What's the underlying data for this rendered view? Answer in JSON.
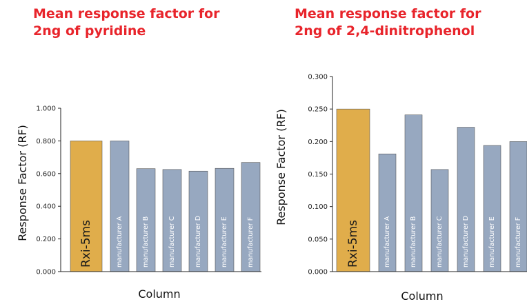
{
  "colors": {
    "title": "#e8242b",
    "highlight": "#e0ad4b",
    "bar": "#97a8c0",
    "axis": "#222222",
    "bar_text_highlight": "#1a1a1a",
    "bar_text": "#ffffff"
  },
  "chart_data": [
    {
      "type": "bar",
      "title_lines": [
        "Mean response factor for",
        "2ng of pyridine"
      ],
      "xlabel": "Column",
      "ylabel": "Response Factor (RF)",
      "ylim": [
        0,
        1.0
      ],
      "yticks": [
        "0.000",
        "0.200",
        "0.400",
        "0.600",
        "0.800",
        "1.000"
      ],
      "categories": [
        "Rxi-5ms",
        "manufacturer A",
        "manufacturer B",
        "manufacturer C",
        "manufacturer D",
        "manufacturer E",
        "manufacturer F"
      ],
      "values": [
        0.8,
        0.8,
        0.63,
        0.625,
        0.615,
        0.632,
        0.668
      ],
      "highlight_index": 0,
      "grid": false
    },
    {
      "type": "bar",
      "title_lines": [
        "Mean response factor for",
        "2ng of 2,4-dinitrophenol"
      ],
      "xlabel": "Column",
      "ylabel": "Response Factor (RF)",
      "ylim": [
        0,
        0.3
      ],
      "yticks": [
        "0.000",
        "0.050",
        "0.100",
        "0.150",
        "0.200",
        "0.250",
        "0.300"
      ],
      "categories": [
        "Rxi-5ms",
        "manufacturer A",
        "manufacturer B",
        "manufacturer C",
        "manufacturer D",
        "manufacturer E",
        "manufacturer F"
      ],
      "values": [
        0.25,
        0.181,
        0.241,
        0.157,
        0.222,
        0.194,
        0.2
      ],
      "highlight_index": 0,
      "grid": false
    }
  ]
}
